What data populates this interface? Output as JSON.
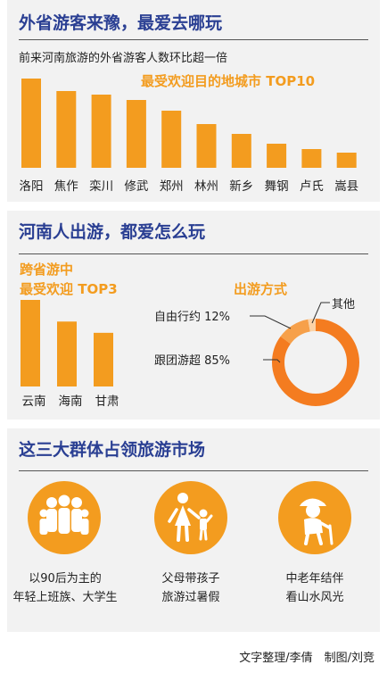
{
  "section1": {
    "title": "外省游客来豫，最爱去哪玩",
    "subtitle": "前来河南旅游的外省游客人数环比超一倍"
  },
  "section2": {
    "title": "河南人出游，都爱怎么玩",
    "top3_title_line1": "跨省游中",
    "top3_title_line2": "最受欢迎 TOP3",
    "mode_title": "出游方式"
  },
  "section3": {
    "title": "这三大群体占领旅游市场",
    "groups": [
      {
        "icon": "family-group-icon",
        "caption_line1": "以90后为主的",
        "caption_line2": "年轻上班族、大学生"
      },
      {
        "icon": "parent-child-icon",
        "caption_line1": "父母带孩子",
        "caption_line2": "旅游过暑假"
      },
      {
        "icon": "elderly-person-icon",
        "caption_line1": "中老年结伴",
        "caption_line2": "看山水风光"
      }
    ]
  },
  "credit": "文字整理/李倩　制图/刘竞",
  "colors": {
    "accent": "#f39c1f",
    "title": "#2a3f93",
    "donut_main": "#f47c20",
    "donut_mid": "#f6a04a",
    "donut_light": "#fbd3a8"
  },
  "chart_data": [
    {
      "type": "bar",
      "title": "最受欢迎目的地城市 TOP10",
      "categories": [
        "洛阳",
        "焦作",
        "栾川",
        "修武",
        "郑州",
        "林州",
        "新乡",
        "舞钢",
        "卢氏",
        "嵩县"
      ],
      "values": [
        10,
        8.6,
        8.2,
        7.6,
        6.4,
        4.9,
        3.8,
        2.7,
        2.1,
        1.7
      ],
      "value_note": "relative ranking (no axis)"
    },
    {
      "type": "bar",
      "title": "跨省游中最受欢迎 TOP3",
      "categories": [
        "云南",
        "海南",
        "甘肃"
      ],
      "values": [
        10,
        7.5,
        6.2
      ],
      "value_note": "relative ranking (no axis)"
    },
    {
      "type": "pie",
      "donut": true,
      "title": "出游方式",
      "slices": [
        {
          "label": "跟团游超 85%",
          "value": 85
        },
        {
          "label": "自由行约 12%",
          "value": 12
        },
        {
          "label": "其他",
          "value": 3
        }
      ]
    }
  ]
}
